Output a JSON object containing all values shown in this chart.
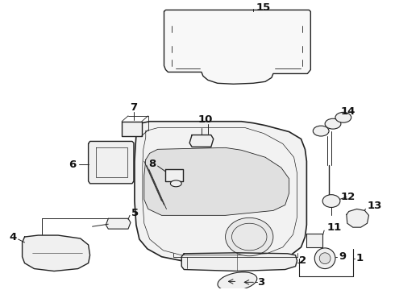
{
  "bg_color": "#ffffff",
  "line_color": "#222222",
  "fig_width": 4.9,
  "fig_height": 3.6,
  "dpi": 100,
  "font_size": 9.5
}
